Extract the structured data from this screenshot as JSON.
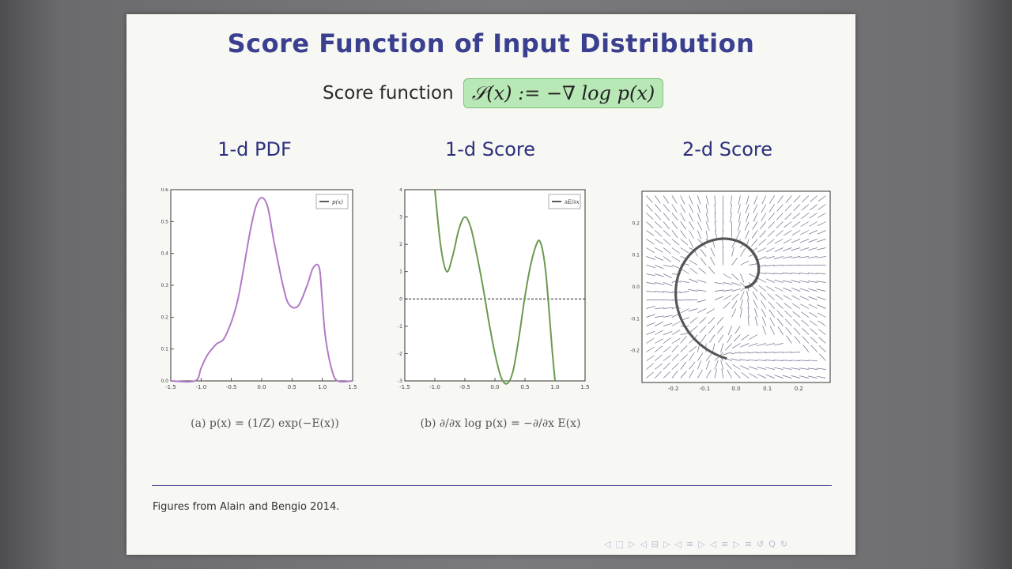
{
  "slide": {
    "title": "Score Function of Input Distribution",
    "score_label": "Score function",
    "score_formula": "𝒮(x) := −∇ log p(x)",
    "columns": [
      {
        "title": "1-d PDF",
        "caption": "(a) p(x) = (1/Z) exp(−E(x))"
      },
      {
        "title": "1-d Score",
        "caption": "(b) ∂/∂x log p(x) = −∂/∂x E(x)"
      },
      {
        "title": "2-d Score",
        "caption": ""
      }
    ],
    "source": "Figures from Alain and Bengio 2014.",
    "nav_icons": [
      "◁",
      "□",
      "▷",
      "◁",
      "⊟",
      "▷",
      "◁",
      "≡",
      "▷",
      "◁",
      "≡",
      "▷",
      "≡",
      "↺",
      "Q",
      "↻"
    ]
  },
  "chart_data": [
    {
      "type": "line",
      "title": "1-d PDF",
      "legend": [
        "p(x)"
      ],
      "legend_placement": "top-right",
      "xlim": [
        -1.5,
        1.5
      ],
      "ylim": [
        0.0,
        0.6
      ],
      "x_ticks": [
        "-1.5",
        "-1.0",
        "-0.5",
        "0.0",
        "0.5",
        "1.0",
        "1.5"
      ],
      "y_ticks": [
        "0.0",
        "0.1",
        "0.2",
        "0.3",
        "0.4",
        "0.5",
        "0.6"
      ],
      "color": "#b07ac6",
      "series": [
        {
          "name": "p(x)",
          "x": [
            -1.5,
            -1.1,
            -1.0,
            -0.9,
            -0.75,
            -0.6,
            -0.4,
            -0.2,
            -0.1,
            0.0,
            0.1,
            0.2,
            0.35,
            0.45,
            0.6,
            0.75,
            0.85,
            0.95,
            1.0,
            1.05,
            1.15,
            1.25,
            1.5
          ],
          "y": [
            0.0,
            0.0,
            0.04,
            0.08,
            0.115,
            0.14,
            0.25,
            0.46,
            0.545,
            0.575,
            0.545,
            0.44,
            0.3,
            0.24,
            0.235,
            0.3,
            0.355,
            0.355,
            0.25,
            0.14,
            0.04,
            0.0,
            0.0
          ]
        }
      ]
    },
    {
      "type": "line",
      "title": "1-d Score",
      "legend": [
        "∂E/∂x"
      ],
      "legend_placement": "top-right",
      "xlim": [
        -1.5,
        1.5
      ],
      "ylim": [
        -3,
        4
      ],
      "x_ticks": [
        "-1.5",
        "-1.0",
        "-0.5",
        "0.0",
        "0.5",
        "1.0",
        "1.5"
      ],
      "y_ticks": [
        "-3",
        "-2",
        "-1",
        "0",
        "1",
        "2",
        "3",
        "4"
      ],
      "reference_line_y": 0,
      "color": "#6a9a4f",
      "series": [
        {
          "name": "∂E/∂x",
          "x": [
            -1.0,
            -0.9,
            -0.8,
            -0.7,
            -0.6,
            -0.5,
            -0.4,
            -0.3,
            -0.2,
            -0.1,
            0.0,
            0.1,
            0.2,
            0.3,
            0.4,
            0.5,
            0.6,
            0.7,
            0.75,
            0.8,
            0.85,
            0.9,
            0.95,
            1.0
          ],
          "y": [
            4.0,
            1.9,
            1.0,
            1.6,
            2.55,
            3.0,
            2.6,
            1.6,
            0.45,
            -0.85,
            -2.0,
            -2.85,
            -3.1,
            -2.65,
            -1.4,
            0.1,
            1.3,
            2.05,
            2.1,
            1.7,
            0.9,
            -0.4,
            -1.8,
            -3.0
          ]
        }
      ]
    },
    {
      "type": "scatter",
      "title": "2-d Score",
      "xlim": [
        -0.3,
        0.3
      ],
      "ylim": [
        -0.3,
        0.3
      ],
      "x_ticks": [
        "-0.2",
        "-0.1",
        "0.0",
        "0.1",
        "0.2"
      ],
      "y_ticks": [
        "0.2",
        "0.1",
        "0.0",
        "-0.1",
        "-0.2"
      ],
      "spiral": "dark points along a spiral arc with a quiver field of small arrows pointing toward it",
      "color": "#555555"
    }
  ]
}
